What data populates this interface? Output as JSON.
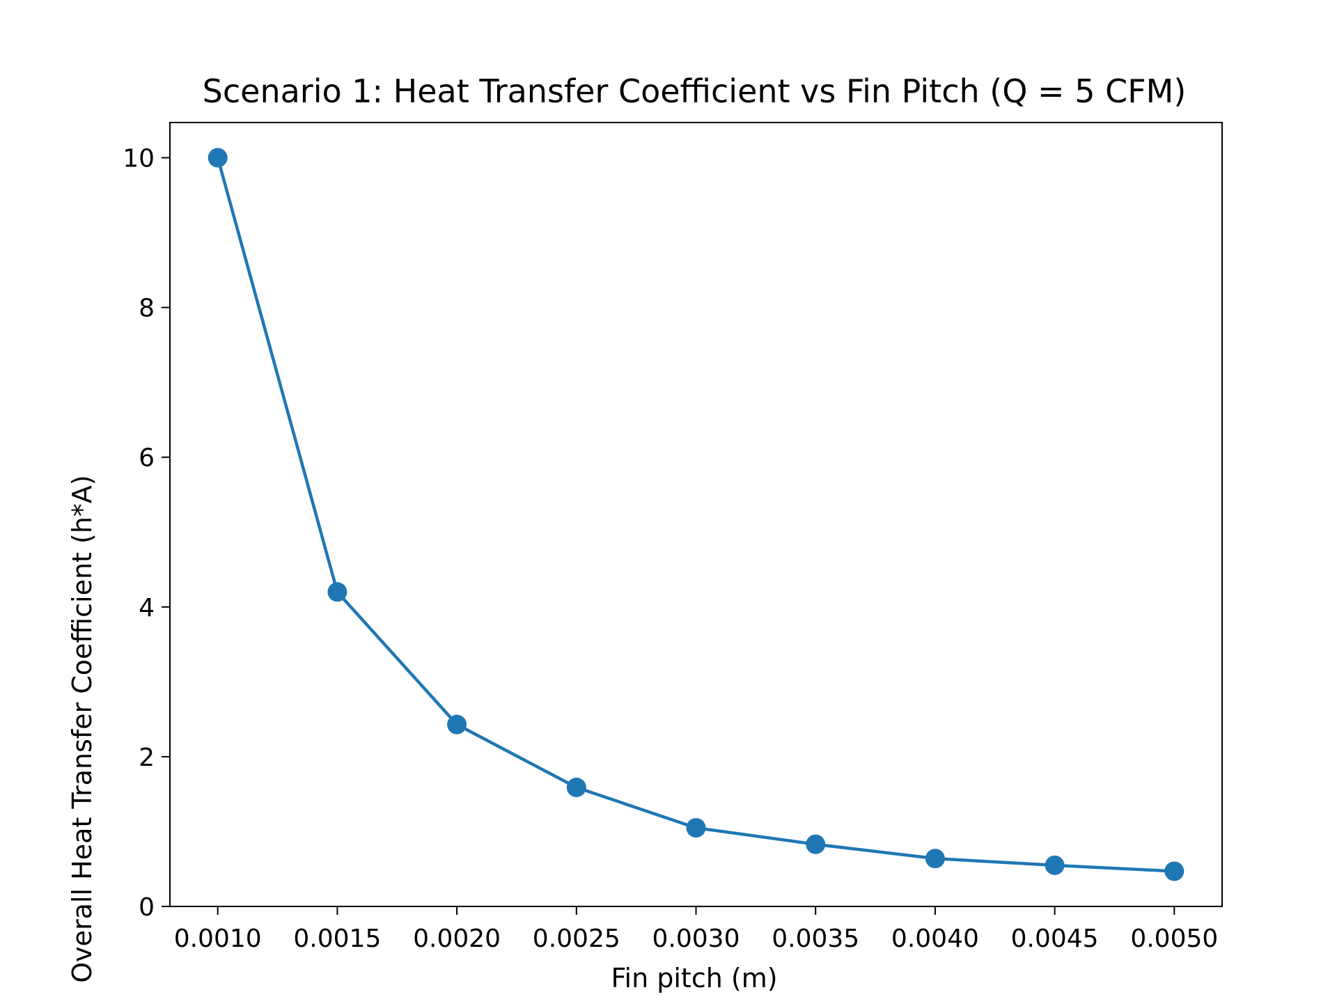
{
  "chart_data": {
    "type": "line",
    "title": "Scenario 1: Heat Transfer Coefficient vs Fin Pitch (Q = 5 CFM)",
    "xlabel": "Fin pitch (m)",
    "ylabel": "Overall Heat Transfer Coefficient (h*A)",
    "x": [
      0.001,
      0.0015,
      0.002,
      0.0025,
      0.003,
      0.0035,
      0.004,
      0.0045,
      0.005
    ],
    "series": [
      {
        "values": [
          10.0,
          4.2,
          2.43,
          1.59,
          1.05,
          0.83,
          0.64,
          0.55,
          0.47
        ]
      }
    ],
    "xlim": [
      0.0008,
      0.0052
    ],
    "ylim": [
      0,
      10.47
    ],
    "xticks": [
      0.001,
      0.0015,
      0.002,
      0.0025,
      0.003,
      0.0035,
      0.004,
      0.0045,
      0.005
    ],
    "xtick_labels": [
      "0.0010",
      "0.0015",
      "0.0020",
      "0.0025",
      "0.0030",
      "0.0035",
      "0.0040",
      "0.0045",
      "0.0050"
    ],
    "yticks": [
      0,
      2,
      4,
      6,
      8,
      10
    ],
    "ytick_labels": [
      "0",
      "2",
      "4",
      "6",
      "8",
      "10"
    ],
    "grid": false,
    "legend": "none",
    "color": "#1f77b4",
    "marker": "circle"
  }
}
